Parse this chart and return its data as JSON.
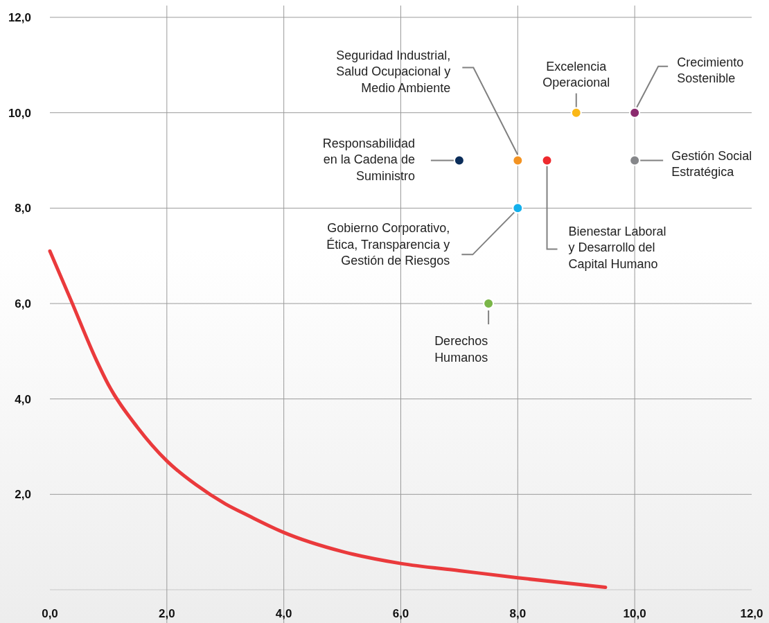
{
  "chart_data": {
    "type": "scatter",
    "xlim": [
      0,
      12
    ],
    "ylim": [
      0,
      12
    ],
    "xticks": [
      {
        "value": 0,
        "label": "0,0"
      },
      {
        "value": 2,
        "label": "2,0"
      },
      {
        "value": 4,
        "label": "4,0"
      },
      {
        "value": 6,
        "label": "6,0"
      },
      {
        "value": 8,
        "label": "8,0"
      },
      {
        "value": 10,
        "label": "10,0"
      },
      {
        "value": 12,
        "label": "12,0"
      }
    ],
    "yticks": [
      {
        "value": 2,
        "label": "2,0"
      },
      {
        "value": 4,
        "label": "4,0"
      },
      {
        "value": 6,
        "label": "6,0"
      },
      {
        "value": 8,
        "label": "8,0"
      },
      {
        "value": 10,
        "label": "10,0"
      },
      {
        "value": 12,
        "label": "12,0"
      }
    ],
    "grid": true,
    "marker": "circle",
    "series": [
      {
        "x": [
          8,
          9,
          10,
          7,
          10,
          8,
          8.5,
          7.5
        ],
        "values": [
          9,
          10,
          10,
          9,
          9,
          8,
          9,
          6
        ],
        "colors": [
          "#f39322",
          "#fbb817",
          "#8b2a6e",
          "#0b2d5a",
          "#86878a",
          "#14b0ec",
          "#ee2a2e",
          "#7ab648"
        ]
      },
      {
        "type": "line",
        "marker": "none",
        "line_style": "solid",
        "color": "#ea3a3c",
        "x": [
          0,
          0.35,
          0.8,
          1,
          1.5,
          2,
          2.5,
          3,
          3.4,
          4,
          5,
          6,
          7,
          8,
          9.5
        ],
        "values": [
          7.1,
          6.1,
          4.8,
          4.3,
          3.4,
          2.7,
          2.2,
          1.8,
          1.55,
          1.2,
          0.8,
          0.55,
          0.4,
          0.25,
          0.05
        ]
      }
    ],
    "annotations": [
      {
        "text": "Seguridad Industrial,\nSalud Ocupacional y\nMedio Ambiente",
        "x": 8,
        "y": 9
      },
      {
        "text": "Excelencia\nOperacional",
        "x": 9,
        "y": 10
      },
      {
        "text": "Crecimiento\nSostenible",
        "x": 10,
        "y": 10
      },
      {
        "text": "Responsabilidad\nen la Cadena de\nSuministro",
        "x": 7,
        "y": 9
      },
      {
        "text": "Gestión Social\nEstratégica",
        "x": 10,
        "y": 9
      },
      {
        "text": "Gobierno Corporativo,\nÉtica, Transparencia y\nGestión de Riesgos",
        "x": 8,
        "y": 8
      },
      {
        "text": "Bienestar Laboral\ny Desarrollo del\nCapital Humano",
        "x": 8.5,
        "y": 9
      },
      {
        "text": "Derechos\nHumanos",
        "x": 7.5,
        "y": 6
      }
    ]
  }
}
